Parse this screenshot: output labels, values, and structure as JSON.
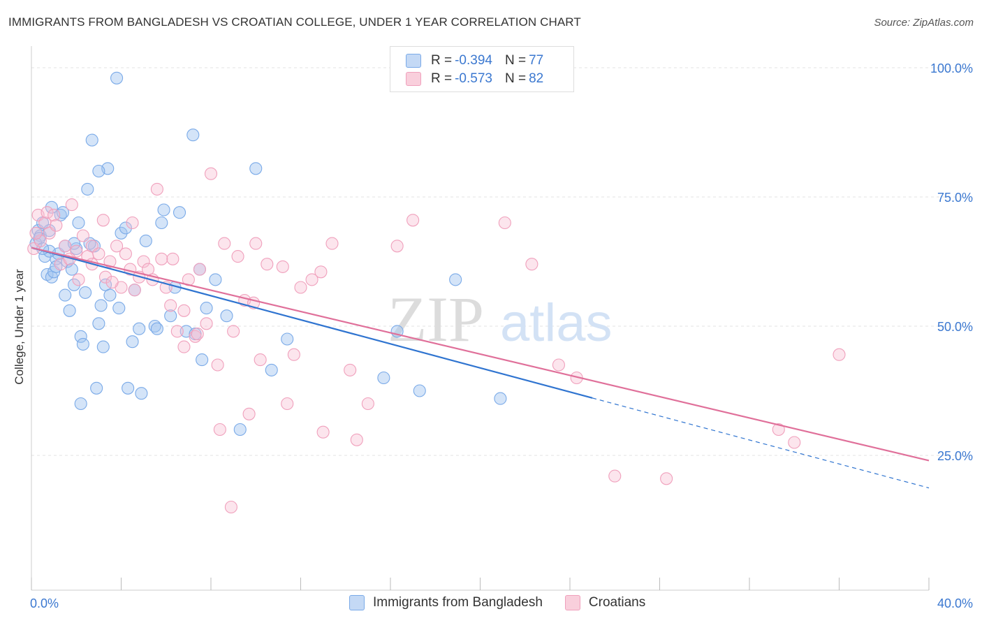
{
  "title": "IMMIGRANTS FROM BANGLADESH VS CROATIAN COLLEGE, UNDER 1 YEAR CORRELATION CHART",
  "source": "Source: ZipAtlas.com",
  "watermark": {
    "zip": "ZIP",
    "atlas": "atlas"
  },
  "legend_top": {
    "rows": [
      {
        "r_label": "R =",
        "r_value": "-0.394",
        "n_label": "N =",
        "n_value": "77"
      },
      {
        "r_label": "R =",
        "r_value": "-0.573",
        "n_label": "N =",
        "n_value": "82"
      }
    ]
  },
  "chart_data": {
    "type": "scatter",
    "title": "IMMIGRANTS FROM BANGLADESH VS CROATIAN COLLEGE, UNDER 1 YEAR CORRELATION CHART",
    "xlabel": "",
    "ylabel": "College, Under 1 year",
    "xlim": [
      0,
      40
    ],
    "ylim": [
      0,
      100
    ],
    "x_tick_labels": [
      "0.0%",
      "40.0%"
    ],
    "y_tick_labels": [
      "25.0%",
      "50.0%",
      "75.0%",
      "100.0%"
    ],
    "y_ticks": [
      25,
      50,
      75,
      100
    ],
    "grid": true,
    "legend_position": "bottom",
    "colors": {
      "blue": "#7aaae8",
      "blue_line": "#2f74d0",
      "pink": "#f0a0bc",
      "pink_line": "#e0709a",
      "tick": "#3b78d0"
    },
    "series": [
      {
        "name": "Immigrants from Bangladesh",
        "color": "blue",
        "trend": {
          "x0": 0,
          "y0": 65.2,
          "x1": 25,
          "y1": 36.1,
          "dash_to": 40,
          "dash_y": 18.7
        },
        "points": [
          [
            0.3,
            68.5
          ],
          [
            0.4,
            67.5
          ],
          [
            0.5,
            70.0
          ],
          [
            0.6,
            63.5
          ],
          [
            0.7,
            60.0
          ],
          [
            0.8,
            68.5
          ],
          [
            0.9,
            59.5
          ],
          [
            1.0,
            60.5
          ],
          [
            1.1,
            63.0
          ],
          [
            1.2,
            64.0
          ],
          [
            1.3,
            71.5
          ],
          [
            1.4,
            72.0
          ],
          [
            1.5,
            65.5
          ],
          [
            1.6,
            62.5
          ],
          [
            1.7,
            53.0
          ],
          [
            1.8,
            61.0
          ],
          [
            1.9,
            58.0
          ],
          [
            2.0,
            65.0
          ],
          [
            2.2,
            48.0
          ],
          [
            2.3,
            46.5
          ],
          [
            2.4,
            56.5
          ],
          [
            2.5,
            76.5
          ],
          [
            2.7,
            86.0
          ],
          [
            2.8,
            65.5
          ],
          [
            2.9,
            38.0
          ],
          [
            3.0,
            50.5
          ],
          [
            3.1,
            54.0
          ],
          [
            3.2,
            46.0
          ],
          [
            3.3,
            58.0
          ],
          [
            3.4,
            80.5
          ],
          [
            3.5,
            56.0
          ],
          [
            3.8,
            98.0
          ],
          [
            3.9,
            53.5
          ],
          [
            4.0,
            68.0
          ],
          [
            4.2,
            69.0
          ],
          [
            4.3,
            38.0
          ],
          [
            4.5,
            47.0
          ],
          [
            4.6,
            57.0
          ],
          [
            4.9,
            37.0
          ],
          [
            5.1,
            66.5
          ],
          [
            5.5,
            50.0
          ],
          [
            5.8,
            70.0
          ],
          [
            5.9,
            72.5
          ],
          [
            6.2,
            52.0
          ],
          [
            6.4,
            57.5
          ],
          [
            6.6,
            72.0
          ],
          [
            6.9,
            49.0
          ],
          [
            7.2,
            87.0
          ],
          [
            7.3,
            48.5
          ],
          [
            7.5,
            61.0
          ],
          [
            7.6,
            43.5
          ],
          [
            7.8,
            53.5
          ],
          [
            8.2,
            59.0
          ],
          [
            8.7,
            52.0
          ],
          [
            9.3,
            30.0
          ],
          [
            10.0,
            80.5
          ],
          [
            10.7,
            41.5
          ],
          [
            11.4,
            47.5
          ],
          [
            15.7,
            40.0
          ],
          [
            16.3,
            49.0
          ],
          [
            17.3,
            37.5
          ],
          [
            18.9,
            59.0
          ],
          [
            20.9,
            36.0
          ],
          [
            0.2,
            66.0
          ],
          [
            0.35,
            67.0
          ],
          [
            1.5,
            56.0
          ],
          [
            0.8,
            64.5
          ],
          [
            2.6,
            66.0
          ],
          [
            1.9,
            66.0
          ],
          [
            4.8,
            49.5
          ],
          [
            5.6,
            49.5
          ],
          [
            2.2,
            35.0
          ],
          [
            3.0,
            80.0
          ],
          [
            1.1,
            61.5
          ],
          [
            0.5,
            65.0
          ],
          [
            2.1,
            70.0
          ],
          [
            0.9,
            73.0
          ]
        ]
      },
      {
        "name": "Croatians",
        "color": "pink",
        "trend": {
          "x0": 0,
          "y0": 65.2,
          "x1": 40,
          "y1": 24.0
        },
        "points": [
          [
            0.1,
            65.0
          ],
          [
            0.3,
            71.5
          ],
          [
            0.4,
            66.5
          ],
          [
            0.6,
            70.0
          ],
          [
            0.7,
            72.0
          ],
          [
            0.8,
            68.0
          ],
          [
            1.0,
            71.5
          ],
          [
            1.1,
            69.5
          ],
          [
            1.3,
            62.0
          ],
          [
            1.5,
            65.5
          ],
          [
            1.8,
            73.5
          ],
          [
            2.0,
            64.5
          ],
          [
            2.1,
            59.0
          ],
          [
            2.3,
            67.5
          ],
          [
            2.5,
            63.5
          ],
          [
            2.7,
            65.5
          ],
          [
            3.0,
            64.0
          ],
          [
            3.2,
            70.5
          ],
          [
            3.3,
            59.5
          ],
          [
            3.5,
            62.5
          ],
          [
            3.8,
            65.5
          ],
          [
            4.0,
            57.5
          ],
          [
            4.2,
            64.0
          ],
          [
            4.4,
            61.0
          ],
          [
            4.6,
            57.0
          ],
          [
            4.8,
            59.5
          ],
          [
            5.0,
            62.5
          ],
          [
            5.2,
            61.0
          ],
          [
            5.6,
            76.5
          ],
          [
            5.8,
            63.0
          ],
          [
            6.0,
            57.5
          ],
          [
            6.2,
            54.0
          ],
          [
            6.3,
            63.0
          ],
          [
            6.5,
            49.0
          ],
          [
            6.8,
            53.0
          ],
          [
            7.0,
            59.0
          ],
          [
            7.3,
            48.0
          ],
          [
            7.5,
            61.0
          ],
          [
            7.8,
            50.5
          ],
          [
            8.0,
            79.5
          ],
          [
            8.3,
            42.5
          ],
          [
            8.6,
            66.0
          ],
          [
            9.0,
            49.0
          ],
          [
            9.2,
            63.5
          ],
          [
            9.5,
            55.0
          ],
          [
            9.7,
            33.0
          ],
          [
            9.9,
            54.5
          ],
          [
            10.0,
            66.0
          ],
          [
            10.2,
            43.5
          ],
          [
            10.5,
            62.0
          ],
          [
            11.2,
            61.5
          ],
          [
            11.4,
            35.0
          ],
          [
            11.7,
            44.5
          ],
          [
            12.0,
            57.5
          ],
          [
            12.5,
            59.0
          ],
          [
            12.9,
            60.5
          ],
          [
            13.0,
            29.5
          ],
          [
            13.4,
            66.0
          ],
          [
            14.2,
            41.5
          ],
          [
            14.5,
            28.0
          ],
          [
            15.0,
            35.0
          ],
          [
            16.3,
            65.5
          ],
          [
            17.0,
            70.5
          ],
          [
            21.1,
            70.0
          ],
          [
            22.3,
            62.0
          ],
          [
            23.5,
            42.5
          ],
          [
            24.3,
            40.0
          ],
          [
            26.0,
            21.0
          ],
          [
            28.3,
            20.5
          ],
          [
            33.3,
            30.0
          ],
          [
            34.0,
            27.5
          ],
          [
            36.0,
            44.5
          ],
          [
            0.2,
            68.0
          ],
          [
            1.7,
            63.0
          ],
          [
            3.6,
            58.5
          ],
          [
            5.4,
            59.0
          ],
          [
            6.8,
            46.0
          ],
          [
            7.4,
            48.5
          ],
          [
            8.4,
            30.0
          ],
          [
            8.9,
            15.0
          ],
          [
            2.7,
            62.0
          ],
          [
            4.5,
            70.0
          ]
        ]
      }
    ]
  },
  "legend_bottom": {
    "items": [
      {
        "label": "Immigrants from Bangladesh"
      },
      {
        "label": "Croatians"
      }
    ]
  }
}
